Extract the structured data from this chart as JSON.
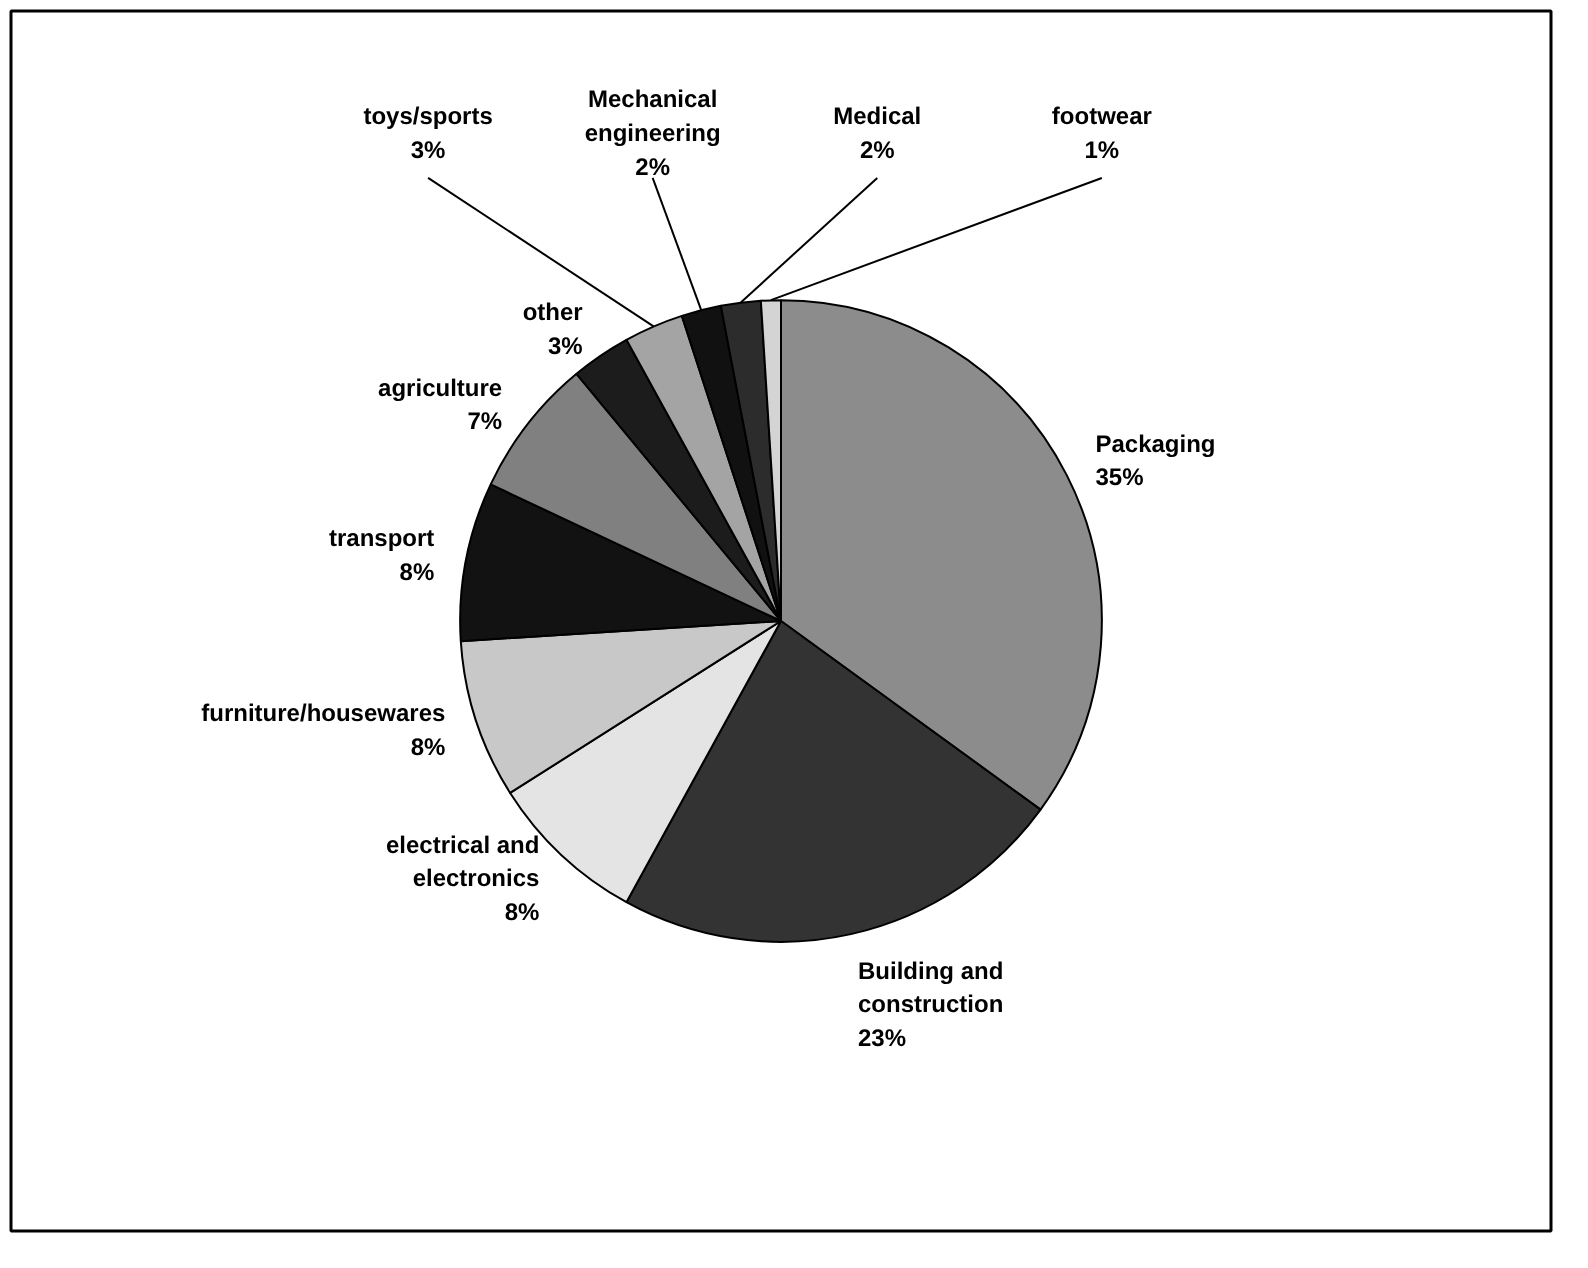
{
  "chart_data": {
    "type": "pie",
    "categories": [
      "Packaging",
      "Building and construction",
      "electrical and electronics",
      "furniture/housewares",
      "transport",
      "agriculture",
      "other",
      "toys/sports",
      "Mechanical engineering",
      "Medical",
      "footwear"
    ],
    "values": [
      35,
      23,
      8,
      8,
      8,
      7,
      3,
      3,
      2,
      2,
      1
    ],
    "value_labels": [
      "35%",
      "23%",
      "8%",
      "8%",
      "8%",
      "7%",
      "3%",
      "3%",
      "2%",
      "2%",
      "1%"
    ],
    "colors": [
      "#8c8c8c",
      "#333333",
      "#e4e4e4",
      "#c8c8c8",
      "#121212",
      "#808080",
      "#1c1c1c",
      "#a4a4a4",
      "#111111",
      "#2c2c2c",
      "#d4d4d4"
    ]
  }
}
